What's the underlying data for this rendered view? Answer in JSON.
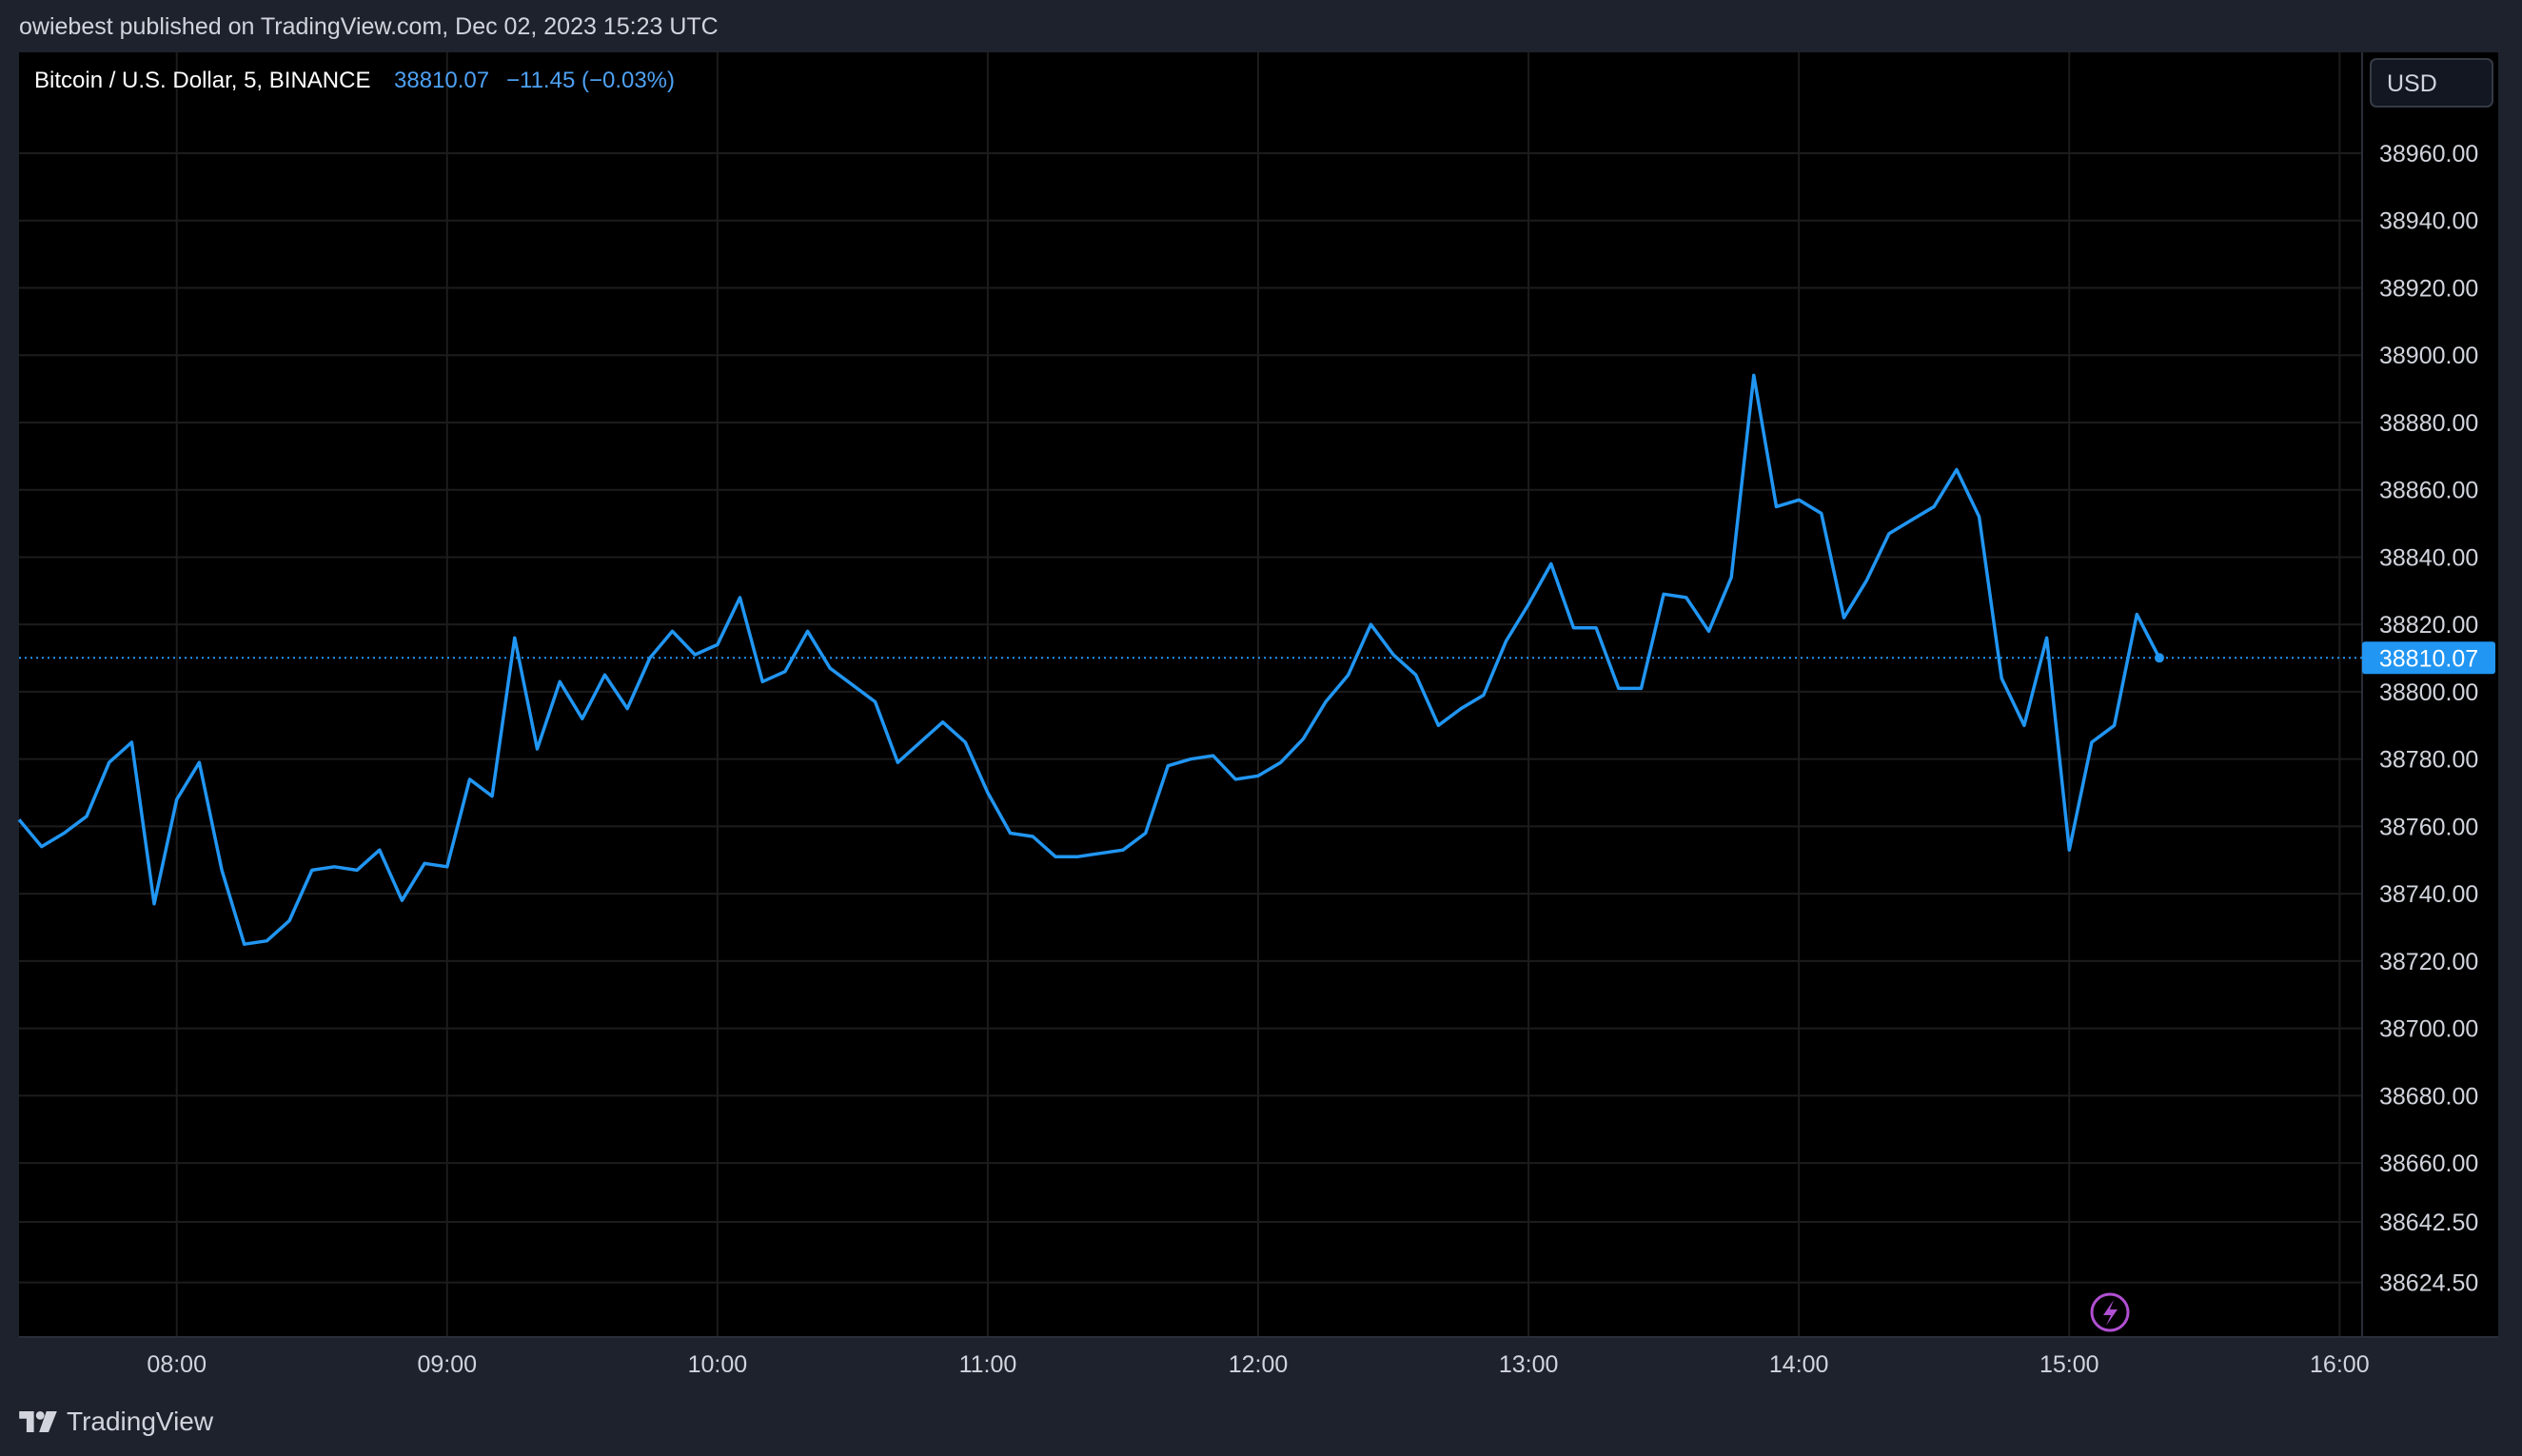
{
  "header": {
    "publish_text": "owiebest published on TradingView.com, Dec 02, 2023 15:23 UTC"
  },
  "legend": {
    "symbol": "Bitcoin / U.S. Dollar, 5, BINANCE",
    "price": "38810.07",
    "change": "−11.45 (−0.03%)"
  },
  "currency_button": "USD",
  "brand": {
    "name": "TradingView"
  },
  "colors": {
    "line": "#2196f3",
    "background": "#000000",
    "grid": "#1c1c1c",
    "text": "#d1d4dc",
    "price_tag": "#2196f3",
    "lightning": "#b04fd1"
  },
  "chart_data": {
    "type": "line",
    "series": [
      {
        "values": [
          {
            "x": "07:25",
            "y": 38762
          },
          {
            "x": "07:30",
            "y": 38754
          },
          {
            "x": "07:35",
            "y": 38758
          },
          {
            "x": "07:40",
            "y": 38763
          },
          {
            "x": "07:45",
            "y": 38779
          },
          {
            "x": "07:50",
            "y": 38785
          },
          {
            "x": "07:55",
            "y": 38737
          },
          {
            "x": "08:00",
            "y": 38768
          },
          {
            "x": "08:05",
            "y": 38779
          },
          {
            "x": "08:10",
            "y": 38747
          },
          {
            "x": "08:15",
            "y": 38725
          },
          {
            "x": "08:20",
            "y": 38726
          },
          {
            "x": "08:25",
            "y": 38732
          },
          {
            "x": "08:30",
            "y": 38747
          },
          {
            "x": "08:35",
            "y": 38748
          },
          {
            "x": "08:40",
            "y": 38747
          },
          {
            "x": "08:45",
            "y": 38753
          },
          {
            "x": "08:50",
            "y": 38738
          },
          {
            "x": "08:55",
            "y": 38749
          },
          {
            "x": "09:00",
            "y": 38748
          },
          {
            "x": "09:05",
            "y": 38774
          },
          {
            "x": "09:10",
            "y": 38769
          },
          {
            "x": "09:15",
            "y": 38816
          },
          {
            "x": "09:20",
            "y": 38783
          },
          {
            "x": "09:25",
            "y": 38803
          },
          {
            "x": "09:30",
            "y": 38792
          },
          {
            "x": "09:35",
            "y": 38805
          },
          {
            "x": "09:40",
            "y": 38795
          },
          {
            "x": "09:45",
            "y": 38810
          },
          {
            "x": "09:50",
            "y": 38818
          },
          {
            "x": "09:55",
            "y": 38811
          },
          {
            "x": "10:00",
            "y": 38814
          },
          {
            "x": "10:05",
            "y": 38828
          },
          {
            "x": "10:10",
            "y": 38803
          },
          {
            "x": "10:15",
            "y": 38806
          },
          {
            "x": "10:20",
            "y": 38818
          },
          {
            "x": "10:25",
            "y": 38807
          },
          {
            "x": "10:30",
            "y": 38802
          },
          {
            "x": "10:35",
            "y": 38797
          },
          {
            "x": "10:40",
            "y": 38779
          },
          {
            "x": "10:45",
            "y": 38785
          },
          {
            "x": "10:50",
            "y": 38791
          },
          {
            "x": "10:55",
            "y": 38785
          },
          {
            "x": "11:00",
            "y": 38770
          },
          {
            "x": "11:05",
            "y": 38758
          },
          {
            "x": "11:10",
            "y": 38757
          },
          {
            "x": "11:15",
            "y": 38751
          },
          {
            "x": "11:20",
            "y": 38751
          },
          {
            "x": "11:25",
            "y": 38752
          },
          {
            "x": "11:30",
            "y": 38753
          },
          {
            "x": "11:35",
            "y": 38758
          },
          {
            "x": "11:40",
            "y": 38778
          },
          {
            "x": "11:45",
            "y": 38780
          },
          {
            "x": "11:50",
            "y": 38781
          },
          {
            "x": "11:55",
            "y": 38774
          },
          {
            "x": "12:00",
            "y": 38775
          },
          {
            "x": "12:05",
            "y": 38779
          },
          {
            "x": "12:10",
            "y": 38786
          },
          {
            "x": "12:15",
            "y": 38797
          },
          {
            "x": "12:20",
            "y": 38805
          },
          {
            "x": "12:25",
            "y": 38820
          },
          {
            "x": "12:30",
            "y": 38811
          },
          {
            "x": "12:35",
            "y": 38805
          },
          {
            "x": "12:40",
            "y": 38790
          },
          {
            "x": "12:45",
            "y": 38795
          },
          {
            "x": "12:50",
            "y": 38799
          },
          {
            "x": "12:55",
            "y": 38815
          },
          {
            "x": "13:00",
            "y": 38826
          },
          {
            "x": "13:05",
            "y": 38838
          },
          {
            "x": "13:10",
            "y": 38819
          },
          {
            "x": "13:15",
            "y": 38819
          },
          {
            "x": "13:20",
            "y": 38801
          },
          {
            "x": "13:25",
            "y": 38801
          },
          {
            "x": "13:30",
            "y": 38829
          },
          {
            "x": "13:35",
            "y": 38828
          },
          {
            "x": "13:40",
            "y": 38818
          },
          {
            "x": "13:45",
            "y": 38834
          },
          {
            "x": "13:50",
            "y": 38894
          },
          {
            "x": "13:55",
            "y": 38855
          },
          {
            "x": "14:00",
            "y": 38857
          },
          {
            "x": "14:05",
            "y": 38853
          },
          {
            "x": "14:10",
            "y": 38822
          },
          {
            "x": "14:15",
            "y": 38833
          },
          {
            "x": "14:20",
            "y": 38847
          },
          {
            "x": "14:25",
            "y": 38851
          },
          {
            "x": "14:30",
            "y": 38855
          },
          {
            "x": "14:35",
            "y": 38866
          },
          {
            "x": "14:40",
            "y": 38852
          },
          {
            "x": "14:45",
            "y": 38804
          },
          {
            "x": "14:50",
            "y": 38790
          },
          {
            "x": "14:55",
            "y": 38816
          },
          {
            "x": "15:00",
            "y": 38753
          },
          {
            "x": "15:05",
            "y": 38785
          },
          {
            "x": "15:10",
            "y": 38790
          },
          {
            "x": "15:15",
            "y": 38823
          },
          {
            "x": "15:20",
            "y": 38810.07
          }
        ]
      }
    ],
    "x_ticks": [
      "08:00",
      "09:00",
      "10:00",
      "11:00",
      "12:00",
      "13:00",
      "14:00",
      "15:00",
      "16:00"
    ],
    "x_range": [
      "07:25",
      "16:05"
    ],
    "y_ticks": [
      "38960.00",
      "38940.00",
      "38920.00",
      "38900.00",
      "38880.00",
      "38860.00",
      "38840.00",
      "38820.00",
      "38800.00",
      "38780.00",
      "38760.00",
      "38740.00",
      "38720.00",
      "38700.00",
      "38680.00",
      "38660.00",
      "38642.50",
      "38624.50"
    ],
    "y_tick_values": [
      38960,
      38940,
      38920,
      38900,
      38880,
      38860,
      38840,
      38820,
      38800,
      38780,
      38760,
      38740,
      38720,
      38700,
      38680,
      38660,
      38642.5,
      38624.5
    ],
    "last_price": 38810.07,
    "last_price_label": "38810.07",
    "grid": true
  }
}
